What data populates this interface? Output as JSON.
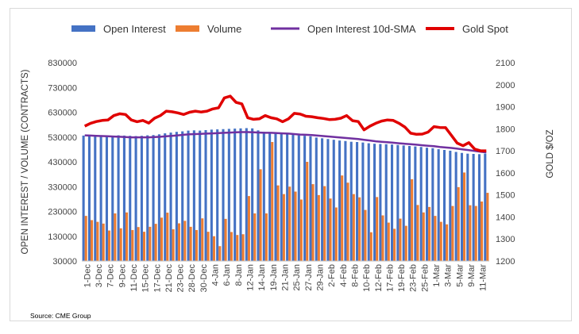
{
  "chart_data": {
    "type": "bar",
    "source": "Source: CME Group",
    "legend": [
      {
        "label": "Open Interest",
        "kind": "bar",
        "color": "#4472c4"
      },
      {
        "label": "Volume",
        "kind": "bar",
        "color": "#ed7d31"
      },
      {
        "label": "Open Interest 10d-SMA",
        "kind": "line",
        "color": "#7030a0"
      },
      {
        "label": "Gold Spot",
        "kind": "line",
        "color": "#e00000"
      }
    ],
    "y_left": {
      "label": "OPEN INTEREST / VOLUME (CONTRACTS)",
      "ticks": [
        "30000",
        "130000",
        "230000",
        "330000",
        "430000",
        "530000",
        "630000",
        "730000",
        "830000"
      ],
      "lim": [
        30000,
        830000
      ]
    },
    "y_right": {
      "label": "GOLD $/OZ",
      "ticks": [
        "1200",
        "1300",
        "1400",
        "1500",
        "1600",
        "1700",
        "1800",
        "1900",
        "2000",
        "2100"
      ],
      "lim": [
        1200,
        2100
      ]
    },
    "x_tick_labels": [
      "1-Dec",
      "3-Dec",
      "7-Dec",
      "9-Dec",
      "11-Dec",
      "15-Dec",
      "17-Dec",
      "21-Dec",
      "23-Dec",
      "28-Dec",
      "30-Dec",
      "4-Jan",
      "6-Jan",
      "8-Jan",
      "12-Jan",
      "14-Jan",
      "19-Jan",
      "21-Jan",
      "25-Jan",
      "27-Jan",
      "29-Jan",
      "2-Feb",
      "4-Feb",
      "8-Feb",
      "10-Feb",
      "12-Feb",
      "17-Feb",
      "19-Feb",
      "23-Feb",
      "25-Feb",
      "1-Mar",
      "3-Mar",
      "5-Mar",
      "9-Mar",
      "11-Mar"
    ],
    "slot_count": 70,
    "open_interest": [
      536000,
      535000,
      534000,
      533000,
      532000,
      534000,
      537000,
      536000,
      535000,
      534000,
      535000,
      537000,
      538000,
      541000,
      545000,
      548000,
      551000,
      553000,
      556000,
      557000,
      556000,
      558000,
      560000,
      561000,
      562000,
      563000,
      564000,
      565000,
      566000,
      565000,
      557000,
      551000,
      549000,
      548000,
      545000,
      543000,
      540000,
      537000,
      535000,
      533000,
      528000,
      525000,
      522000,
      519000,
      516000,
      514000,
      511000,
      510000,
      508000,
      505000,
      503000,
      502000,
      501000,
      500000,
      498000,
      496000,
      494000,
      492000,
      490000,
      487000,
      485000,
      481000,
      478000,
      475000,
      470000,
      466000,
      463000,
      462000,
      461000,
      463000
    ],
    "volume": [
      212000,
      195000,
      188000,
      181000,
      153000,
      222000,
      162000,
      226000,
      155000,
      167000,
      148000,
      168000,
      180000,
      205000,
      225000,
      158000,
      182000,
      192000,
      168000,
      155000,
      202000,
      148000,
      130000,
      90000,
      200000,
      147000,
      135000,
      138000,
      292000,
      222000,
      400000,
      222000,
      510000,
      335000,
      300000,
      330000,
      310000,
      278000,
      430000,
      340000,
      296000,
      332000,
      282000,
      246000,
      375000,
      346000,
      300000,
      287000,
      236000,
      146000,
      288000,
      214000,
      185000,
      160000,
      201000,
      172000,
      360000,
      256000,
      226000,
      248000,
      212000,
      188000,
      178000,
      252000,
      328000,
      387000,
      255000,
      252000,
      270000,
      305000
    ],
    "oi_sma": [
      537000,
      536000,
      535000,
      534000,
      533000,
      532000,
      531000,
      530000,
      529000,
      529000,
      529000,
      529000,
      530000,
      531000,
      533000,
      535000,
      537000,
      539000,
      541000,
      542000,
      543000,
      544000,
      545000,
      546000,
      547000,
      548000,
      549000,
      550000,
      550000,
      549000,
      548000,
      547000,
      547000,
      546000,
      545000,
      544000,
      542000,
      540000,
      539000,
      538000,
      536000,
      534000,
      532000,
      530000,
      528000,
      526000,
      524000,
      522000,
      519000,
      516000,
      513000,
      511000,
      509000,
      507000,
      505000,
      503000,
      501000,
      499000,
      497000,
      495000,
      493000,
      490000,
      488000,
      486000,
      483000,
      480000,
      477000,
      474000,
      471000,
      468000
    ],
    "gold_spot": [
      1812,
      1825,
      1833,
      1838,
      1840,
      1860,
      1868,
      1865,
      1840,
      1832,
      1838,
      1826,
      1848,
      1860,
      1880,
      1877,
      1872,
      1865,
      1875,
      1880,
      1876,
      1880,
      1890,
      1895,
      1940,
      1948,
      1920,
      1913,
      1850,
      1843,
      1845,
      1860,
      1850,
      1845,
      1832,
      1845,
      1870,
      1867,
      1857,
      1855,
      1850,
      1847,
      1842,
      1843,
      1848,
      1860,
      1837,
      1833,
      1795,
      1812,
      1825,
      1835,
      1840,
      1838,
      1825,
      1808,
      1780,
      1775,
      1776,
      1785,
      1810,
      1806,
      1805,
      1770,
      1735,
      1723,
      1737,
      1708,
      1700,
      1700
    ]
  }
}
